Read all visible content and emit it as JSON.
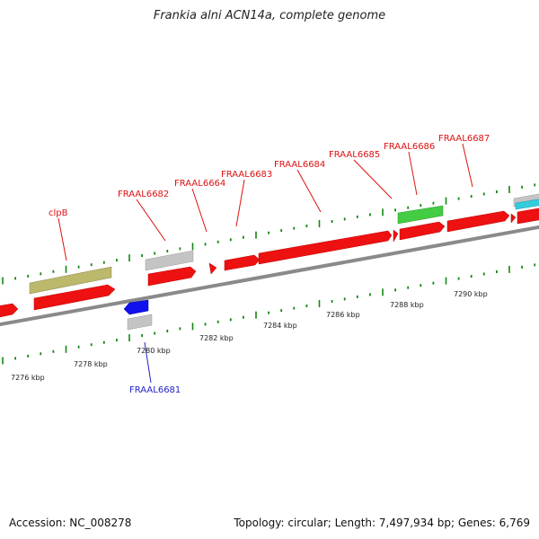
{
  "title": "Frankia alni ACN14a, complete genome",
  "footer": {
    "accession": "Accession: NC_008278",
    "summary": "Topology: circular; Length: 7,497,934 bp; Genes: 6,769"
  },
  "colors": {
    "cds": "#ee1111",
    "label_red": "#dd1111",
    "label_blue": "#2222cc",
    "olive": "#bcb86c",
    "gray_feature": "#c4c4c4",
    "green_feature": "#44cc44",
    "blue_feature": "#1111ee",
    "cyan_feature": "#33ccdd",
    "tick": "#118811",
    "backbone": "#8a8a8a"
  },
  "axis": {
    "labels": [
      "7276 kbp",
      "7278 kbp",
      "7280 kbp",
      "7282 kbp",
      "7284 kbp",
      "7286 kbp",
      "7288 kbp",
      "7290 kbp"
    ]
  },
  "genes": {
    "clpB": "clpB",
    "FRAAL6682": "FRAAL6682",
    "FRAAL6664": "FRAAL6664",
    "FRAAL6683": "FRAAL6683",
    "FRAAL6684": "FRAAL6684",
    "FRAAL6685": "FRAAL6685",
    "FRAAL6686": "FRAAL6686",
    "FRAAL6687": "FRAAL6687",
    "FRAAL6681": "FRAAL6681"
  }
}
